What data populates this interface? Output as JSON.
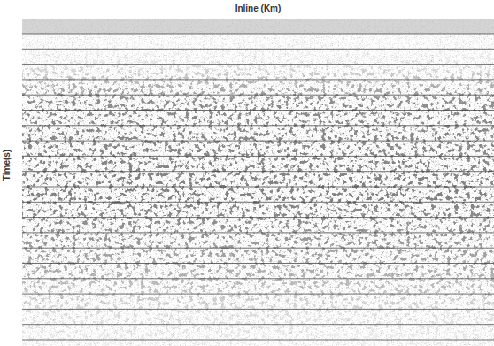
{
  "chart_data": {
    "type": "seismic",
    "title": "Inline (Km)",
    "y_label": "Time(s)",
    "tick_labels": false,
    "grid": true
  }
}
